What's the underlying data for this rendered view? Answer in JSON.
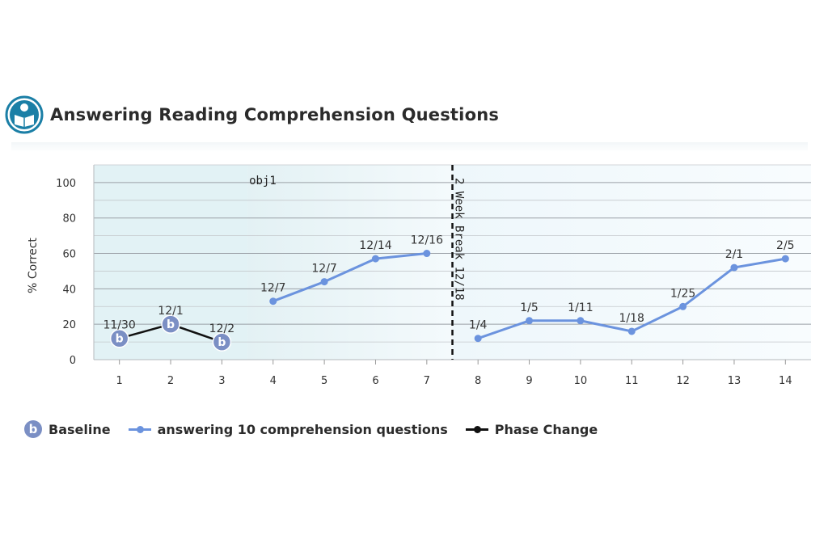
{
  "header": {
    "title": "Answering Reading Comprehension Questions",
    "icon": "reader-icon"
  },
  "colors": {
    "baseline": "#7b8fc4",
    "baseline_line": "#111111",
    "intervention": "#6b93de",
    "phase_change": "#111111",
    "plot_bg_start": "#e6f4f7",
    "plot_bg_end": "#ffffff"
  },
  "chart_data": {
    "type": "line",
    "title": "Answering Reading Comprehension Questions",
    "xlabel": "",
    "ylabel": "% Correct",
    "xlim": [
      0.5,
      14.5
    ],
    "ylim": [
      0,
      110
    ],
    "yticks": [
      0,
      20,
      40,
      60,
      80,
      100
    ],
    "xticks": [
      1,
      2,
      3,
      4,
      5,
      6,
      7,
      8,
      9,
      10,
      11,
      12,
      13,
      14
    ],
    "grid": true,
    "legend_position": "bottom-left",
    "series": [
      {
        "name": "Baseline",
        "marker": "b",
        "points": [
          {
            "x": 1,
            "y": 12,
            "label": "11/30"
          },
          {
            "x": 2,
            "y": 20,
            "label": "12/1"
          },
          {
            "x": 3,
            "y": 10,
            "label": "12/2"
          }
        ]
      },
      {
        "name": "answering 10 comprehension questions",
        "segments": [
          [
            {
              "x": 4,
              "y": 33,
              "label": "12/7"
            },
            {
              "x": 5,
              "y": 44,
              "label": "12/7"
            },
            {
              "x": 6,
              "y": 57,
              "label": "12/14"
            },
            {
              "x": 7,
              "y": 60,
              "label": "12/16"
            }
          ],
          [
            {
              "x": 8,
              "y": 12,
              "label": "1/4"
            },
            {
              "x": 9,
              "y": 22,
              "label": "1/5"
            },
            {
              "x": 10,
              "y": 22,
              "label": "1/11"
            },
            {
              "x": 11,
              "y": 16,
              "label": "1/18"
            },
            {
              "x": 12,
              "y": 30,
              "label": "1/25"
            },
            {
              "x": 13,
              "y": 52,
              "label": "2/1"
            },
            {
              "x": 14,
              "y": 57,
              "label": "2/5"
            }
          ]
        ]
      }
    ],
    "phase_change": {
      "name": "Phase Change",
      "x": 7.5,
      "label": "2 Week Break 12/18"
    },
    "annotations": [
      {
        "text": "obj1",
        "x": 3.5,
        "y": 100
      }
    ]
  }
}
